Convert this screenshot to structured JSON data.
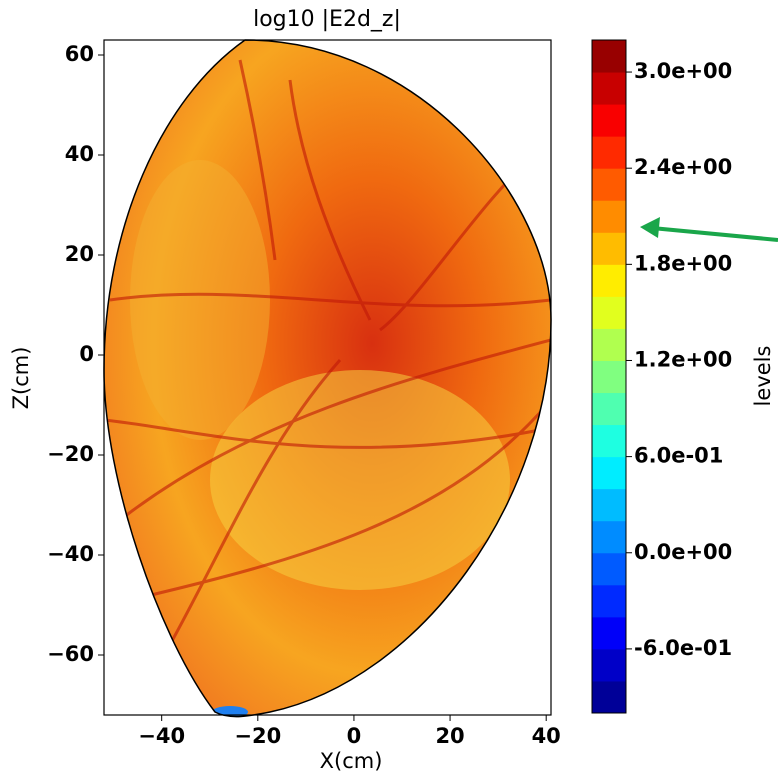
{
  "chart_data": {
    "type": "contour",
    "title": "log10 |E2d_z|",
    "x_label": "X(cm)",
    "y_label": "Z(cm)",
    "xlim": [
      -52,
      41
    ],
    "xticks": [
      {
        "value": -40,
        "label": "−40"
      },
      {
        "value": -20,
        "label": "−20"
      },
      0,
      20,
      40
    ],
    "ylim": [
      -72,
      63
    ],
    "yticks": [
      {
        "value": -60,
        "label": "−60"
      },
      {
        "value": -40,
        "label": "−40"
      },
      {
        "value": -20,
        "label": "−20"
      },
      0,
      20,
      40,
      60
    ],
    "colorbar": {
      "label": "levels",
      "colormap": "jet",
      "lim": [
        -1.0,
        3.2
      ],
      "levels": [
        -1.0,
        -0.8,
        -0.6,
        -0.4,
        -0.2,
        0.0,
        0.2,
        0.4,
        0.6,
        0.8,
        1.0,
        1.2,
        1.4,
        1.6,
        1.8,
        2.0,
        2.2,
        2.4,
        2.6,
        2.8,
        3.0,
        3.2
      ],
      "ticks": [
        {
          "value": 3.0,
          "label": "3.0e+00"
        },
        {
          "value": 2.4,
          "label": "2.4e+00"
        },
        {
          "value": 1.8,
          "label": "1.8e+00"
        },
        {
          "value": 1.2,
          "label": "1.2e+00"
        },
        {
          "value": 0.6,
          "label": "6.0e-01"
        },
        {
          "value": 0.0,
          "label": "0.0e+00"
        },
        {
          "value": -0.6,
          "label": "-6.0e-01"
        }
      ]
    }
  }
}
